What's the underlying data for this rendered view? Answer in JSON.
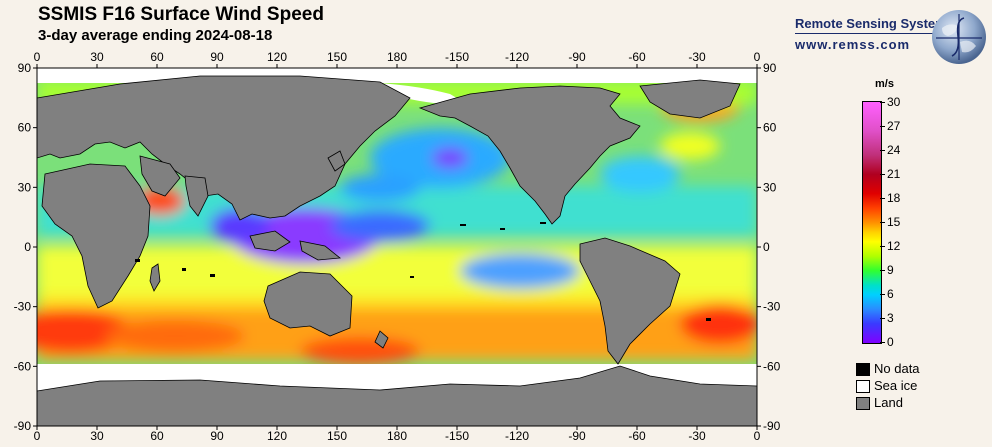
{
  "title": "SSMIS F16 Surface Wind Speed",
  "subtitle": "3-day average ending 2024-08-18",
  "brand": {
    "name": "Remote Sensing Systems",
    "url": "www.remss.com",
    "color": "#1a2b6b"
  },
  "map": {
    "top_lon_labels": [
      "0",
      "30",
      "60",
      "90",
      "120",
      "150",
      "180",
      "-150",
      "-120",
      "-90",
      "-60",
      "-30",
      "0"
    ],
    "bottom_lon_labels": [
      "0",
      "30",
      "60",
      "90",
      "120",
      "150",
      "180",
      "-150",
      "-120",
      "-90",
      "-60",
      "-30",
      "0"
    ],
    "lat_labels": [
      "90",
      "60",
      "30",
      "0",
      "-30",
      "-60",
      "-90"
    ],
    "land_color": "#808080",
    "sea_ice_color": "#ffffff",
    "no_data_color": "#000000"
  },
  "colorbar": {
    "unit": "m/s",
    "min": 0,
    "max": 30,
    "tick_labels": [
      "30",
      "27",
      "24",
      "21",
      "18",
      "15",
      "12",
      "9",
      "6",
      "3",
      "0"
    ]
  },
  "legend": [
    {
      "label": "No data",
      "color": "#000000"
    },
    {
      "label": "Sea ice",
      "color": "#ffffff"
    },
    {
      "label": "Land",
      "color": "#808080"
    }
  ]
}
